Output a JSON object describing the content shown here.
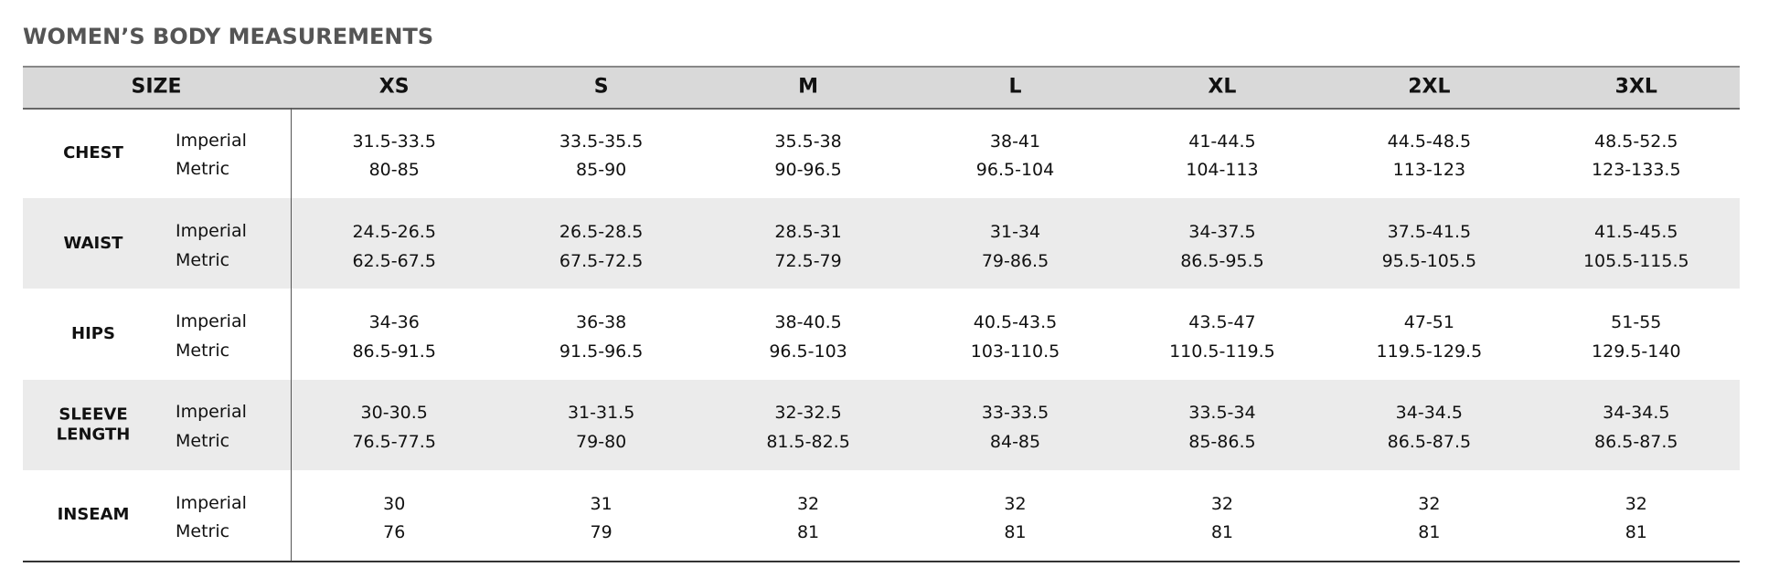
{
  "title": "WOMEN’S BODY MEASUREMENTS",
  "header": {
    "size_label": "SIZE",
    "sizes": [
      "XS",
      "S",
      "M",
      "L",
      "XL",
      "2XL",
      "3XL"
    ]
  },
  "rows": [
    {
      "label": "CHEST",
      "units": [
        "Imperial",
        "Metric"
      ],
      "imperial": [
        "31.5-33.5",
        "33.5-35.5",
        "35.5-38",
        "38-41",
        "41-44.5",
        "44.5-48.5",
        "48.5-52.5"
      ],
      "metric": [
        "80-85",
        "85-90",
        "90-96.5",
        "96.5-104",
        "104-113",
        "113-123",
        "123-133.5"
      ]
    },
    {
      "label": "WAIST",
      "units": [
        "Imperial",
        "Metric"
      ],
      "imperial": [
        "24.5-26.5",
        "26.5-28.5",
        "28.5-31",
        "31-34",
        "34-37.5",
        "37.5-41.5",
        "41.5-45.5"
      ],
      "metric": [
        "62.5-67.5",
        "67.5-72.5",
        "72.5-79",
        "79-86.5",
        "86.5-95.5",
        "95.5-105.5",
        "105.5-115.5"
      ]
    },
    {
      "label": "HIPS",
      "units": [
        "Imperial",
        "Metric"
      ],
      "imperial": [
        "34-36",
        "36-38",
        "38-40.5",
        "40.5-43.5",
        "43.5-47",
        "47-51",
        "51-55"
      ],
      "metric": [
        "86.5-91.5",
        "91.5-96.5",
        "96.5-103",
        "103-110.5",
        "110.5-119.5",
        "119.5-129.5",
        "129.5-140"
      ]
    },
    {
      "label": "SLEEVE LENGTH",
      "units": [
        "Imperial",
        "Metric"
      ],
      "imperial": [
        "30-30.5",
        "31-31.5",
        "32-32.5",
        "33-33.5",
        "33.5-34",
        "34-34.5",
        "34-34.5"
      ],
      "metric": [
        "76.5-77.5",
        "79-80",
        "81.5-82.5",
        "84-85",
        "85-86.5",
        "86.5-87.5",
        "86.5-87.5"
      ]
    },
    {
      "label": "INSEAM",
      "units": [
        "Imperial",
        "Metric"
      ],
      "imperial": [
        "30",
        "31",
        "32",
        "32",
        "32",
        "32",
        "32"
      ],
      "metric": [
        "76",
        "79",
        "81",
        "81",
        "81",
        "81",
        "81"
      ]
    }
  ]
}
